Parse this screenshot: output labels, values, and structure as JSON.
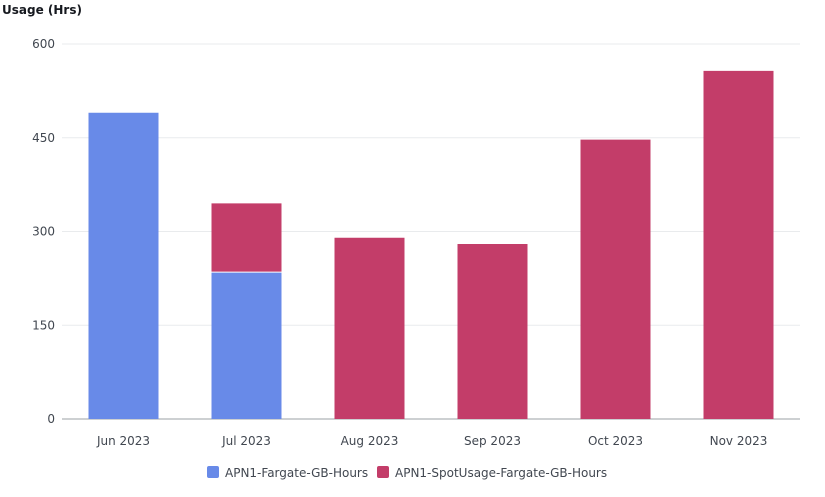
{
  "chart_data": {
    "type": "bar",
    "stacked": true,
    "ylabel": "Usage (Hrs)",
    "xlabel": "",
    "title": "",
    "ylim": [
      0,
      600
    ],
    "yticks": [
      0,
      150,
      300,
      450,
      600
    ],
    "categories": [
      "Jun 2023",
      "Jul 2023",
      "Aug 2023",
      "Sep 2023",
      "Oct 2023",
      "Nov 2023"
    ],
    "series": [
      {
        "name": "APN1-Fargate-GB-Hours",
        "color": "#688ae8",
        "values": [
          490,
          235,
          0,
          0,
          0,
          0
        ]
      },
      {
        "name": "APN1-SpotUsage-Fargate-GB-Hours",
        "color": "#c33d69",
        "values": [
          0,
          110,
          290,
          280,
          447,
          557
        ]
      }
    ],
    "grid": true,
    "legend": "bottom-center"
  }
}
